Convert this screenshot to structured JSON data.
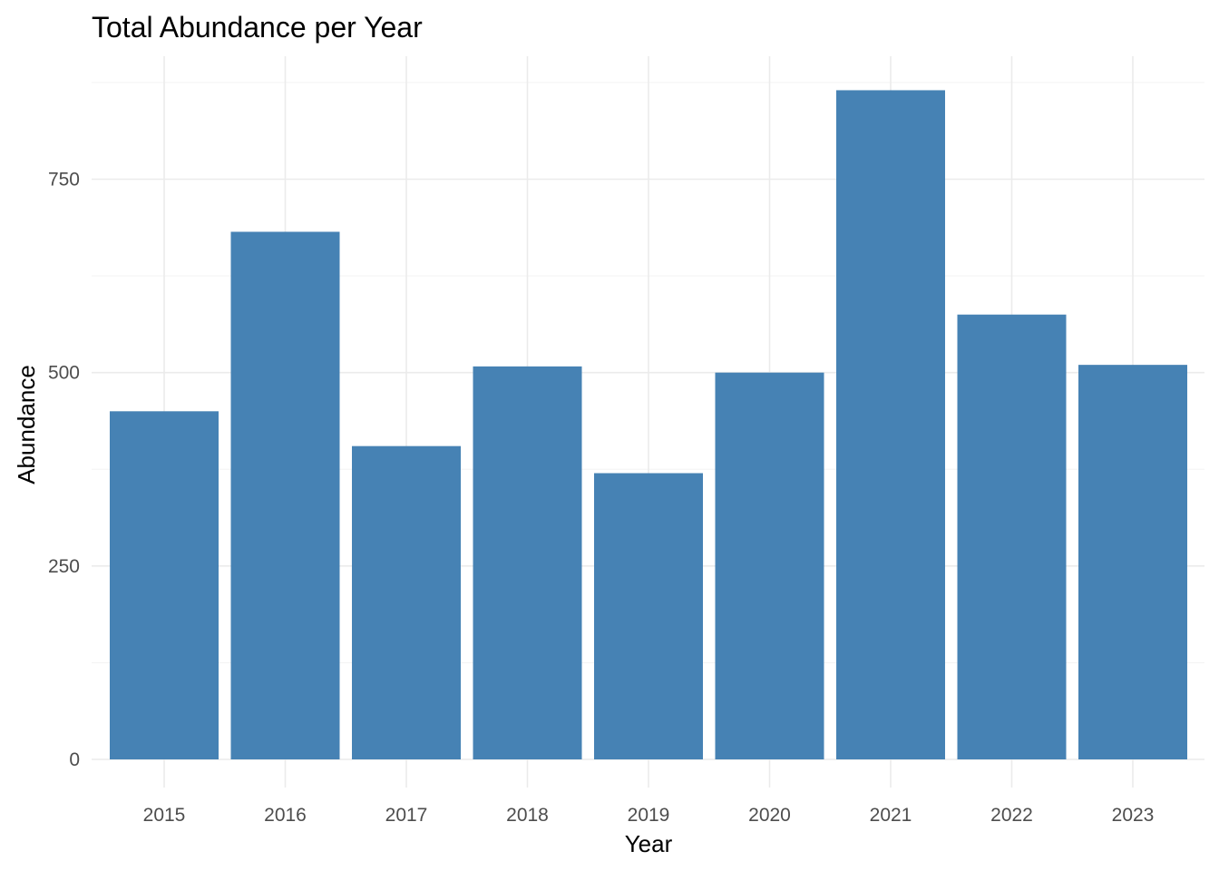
{
  "chart_data": {
    "type": "bar",
    "title": "Total Abundance per Year",
    "xlabel": "Year",
    "ylabel": "Abundance",
    "categories": [
      "2015",
      "2016",
      "2017",
      "2018",
      "2019",
      "2020",
      "2021",
      "2022",
      "2023"
    ],
    "values": [
      450,
      682,
      405,
      508,
      370,
      500,
      865,
      575,
      510
    ],
    "ylim": [
      0,
      875
    ],
    "yticks": [
      0,
      250,
      500,
      750
    ],
    "grid": true,
    "bar_color": "#4682b4"
  }
}
